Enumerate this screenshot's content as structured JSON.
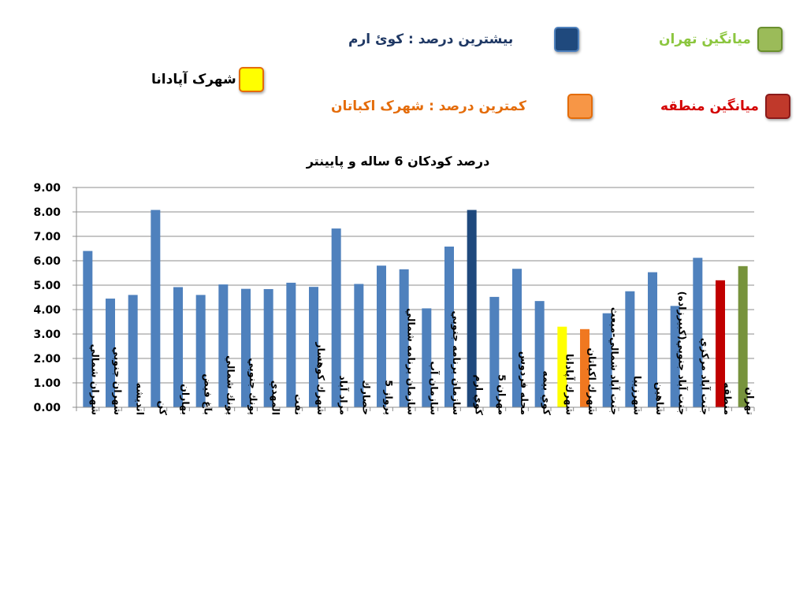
{
  "legend": {
    "max_label": "بیشترین درصد   :   کوئ ارم",
    "tehran_avg_label": "میانگین  تهران",
    "apadana_label": "شهرک آپادانا",
    "min_label": "کمترین درصد  : شهرک اکباتان",
    "region_avg_label": "میانگین منطقه"
  },
  "colors": {
    "default": "#4f81bd",
    "highest": "#1f497d",
    "apadana": "#ffff00",
    "lowest": "#f07820",
    "region": "#c00000",
    "tehran": "#77933c",
    "tehran_text": "#8cc63f",
    "region_text": "#d40000",
    "min_text": "#e46c0a",
    "max_text": "#1f3864"
  },
  "chart_data": {
    "type": "bar",
    "title": "درصد کودکان 6 ساله و پایینتر",
    "xlabel": "",
    "ylabel": "",
    "ylim": [
      0,
      9
    ],
    "yticks": [
      "0.00",
      "1.00",
      "2.00",
      "3.00",
      "4.00",
      "5.00",
      "6.00",
      "7.00",
      "8.00",
      "9.00"
    ],
    "grid": true,
    "categories": [
      "شهران شمالي",
      "شهران جنوبي",
      "انديشه",
      "كن",
      "بهاران",
      "باغ فيض",
      "پونك شمالي",
      "پونك جنوبي",
      "المهدي",
      "نفت",
      "شهرك كوهسار",
      "مراد آباد",
      "حصارك",
      "پرواز 5",
      "سازمان برنامه شمالي",
      "سازمان آب",
      "سازمان برنامه جنوبي",
      "كوي ارم",
      "مهران 5",
      "محله فردوس",
      "كوي بيمه",
      "شهرك آپادانا",
      "شهرك اكباتان",
      "جنت آباد شمالي-مبعث",
      "شهرزيبا",
      "شاهين",
      "جنت آباد جنوبي(كبيرزاده)",
      "جنت آباد مركزي",
      "منطقه",
      "تهران"
    ],
    "values": [
      6.4,
      4.45,
      4.6,
      8.08,
      4.92,
      4.6,
      5.03,
      4.85,
      4.84,
      5.1,
      4.93,
      7.32,
      5.05,
      5.8,
      5.65,
      4.05,
      6.58,
      8.08,
      4.52,
      5.67,
      4.35,
      3.3,
      3.2,
      3.85,
      4.75,
      5.53,
      4.15,
      6.12,
      5.2,
      5.78
    ],
    "bar_colors": [
      "default",
      "default",
      "default",
      "default",
      "default",
      "default",
      "default",
      "default",
      "default",
      "default",
      "default",
      "default",
      "default",
      "default",
      "default",
      "default",
      "default",
      "highest",
      "default",
      "default",
      "default",
      "apadana",
      "lowest",
      "default",
      "default",
      "default",
      "default",
      "default",
      "region",
      "tehran"
    ]
  }
}
